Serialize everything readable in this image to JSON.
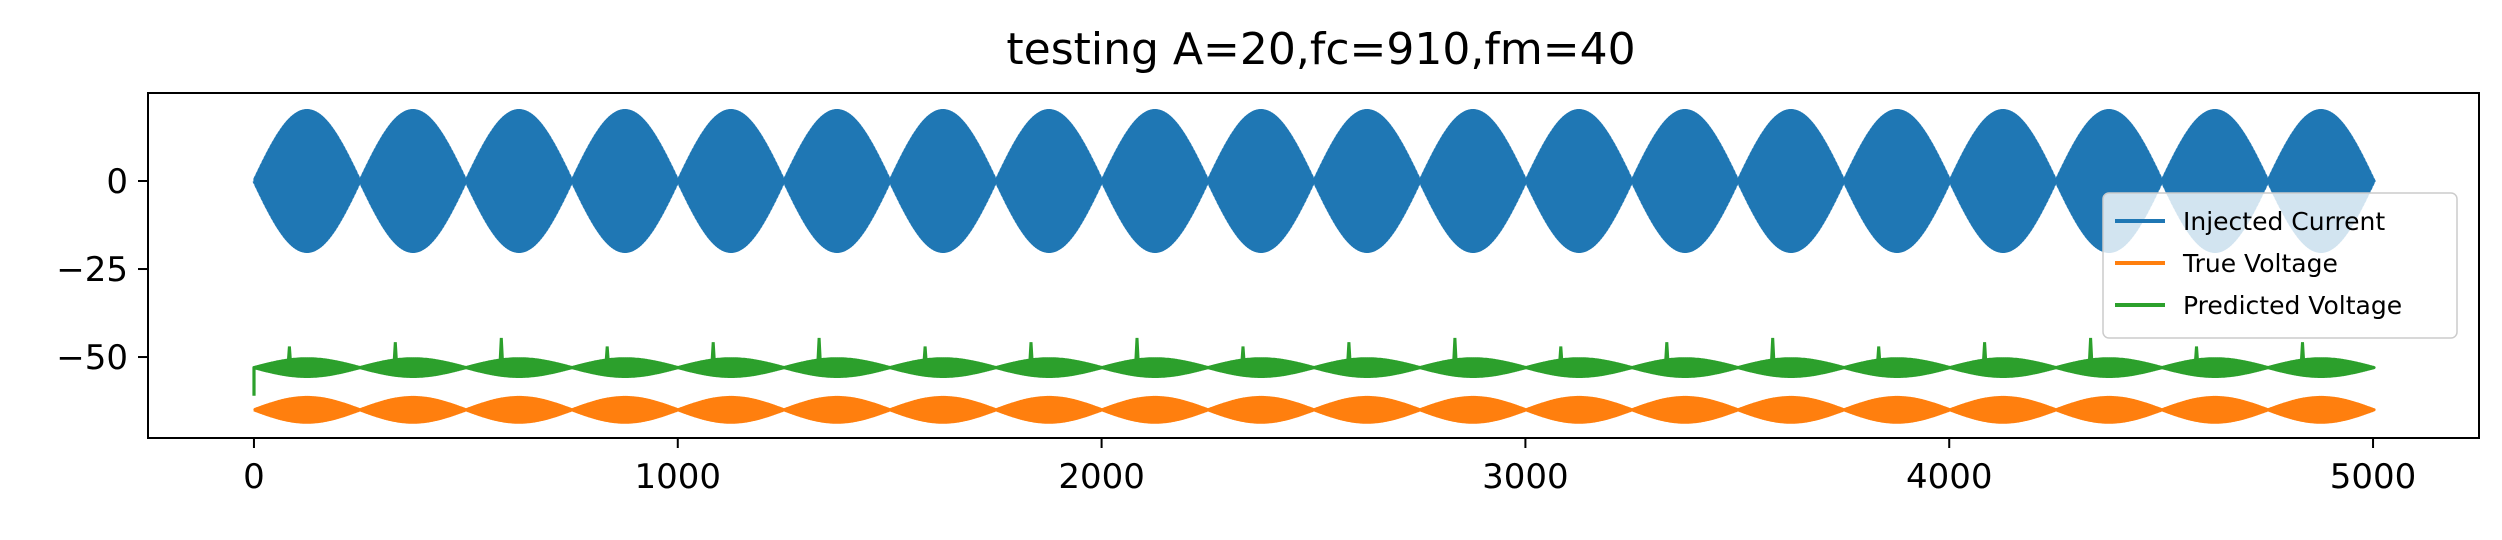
{
  "chart_data": {
    "type": "line",
    "title": "testing A=20,fc=910,fm=40",
    "xlabel": "",
    "ylabel": "",
    "xlim": [
      -250,
      5250
    ],
    "ylim": [
      -73,
      25
    ],
    "xticks": [
      0,
      1000,
      2000,
      3000,
      4000,
      5000
    ],
    "xtick_labels": [
      "0",
      "1000",
      "2000",
      "3000",
      "4000",
      "5000"
    ],
    "yticks": [
      0,
      -25,
      -50
    ],
    "ytick_labels": [
      "0",
      "−25",
      "−50"
    ],
    "legend_position": "center-right",
    "series": [
      {
        "name": "Injected Current",
        "color": "#1f77b4",
        "x_range": [
          0,
          5000
        ],
        "center": 0,
        "amplitude": 20,
        "envelope_period": 250,
        "carrier_cycles": 910,
        "start_value": 0,
        "end_value": 0
      },
      {
        "name": "True Voltage",
        "color": "#ff7f0e",
        "x_range": [
          0,
          5000
        ],
        "center": -65,
        "amplitude": 3.5,
        "envelope_period": 250,
        "carrier_cycles": 910,
        "start_value": -65,
        "end_value": -65
      },
      {
        "name": "Predicted Voltage",
        "color": "#2ca02c",
        "x_range": [
          0,
          5000
        ],
        "center": -53,
        "amplitude": 2.5,
        "envelope_period": 250,
        "carrier_cycles": 910,
        "start_value": -61,
        "end_value": -53,
        "spike_value": -47
      }
    ]
  }
}
